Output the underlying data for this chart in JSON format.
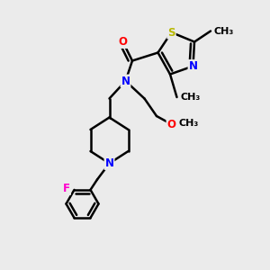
{
  "background_color": "#ebebeb",
  "atoms": {
    "S": {
      "color": "#b8b800"
    },
    "N": {
      "color": "#0000ff"
    },
    "O": {
      "color": "#ff0000"
    },
    "F": {
      "color": "#ff00cc"
    },
    "C": {
      "color": "#000000"
    }
  },
  "bond_color": "#000000",
  "bond_width": 1.8,
  "label_fontsize": 8.5,
  "methyl_fontsize": 8.0,
  "xlim": [
    0,
    10
  ],
  "ylim": [
    0,
    10
  ]
}
